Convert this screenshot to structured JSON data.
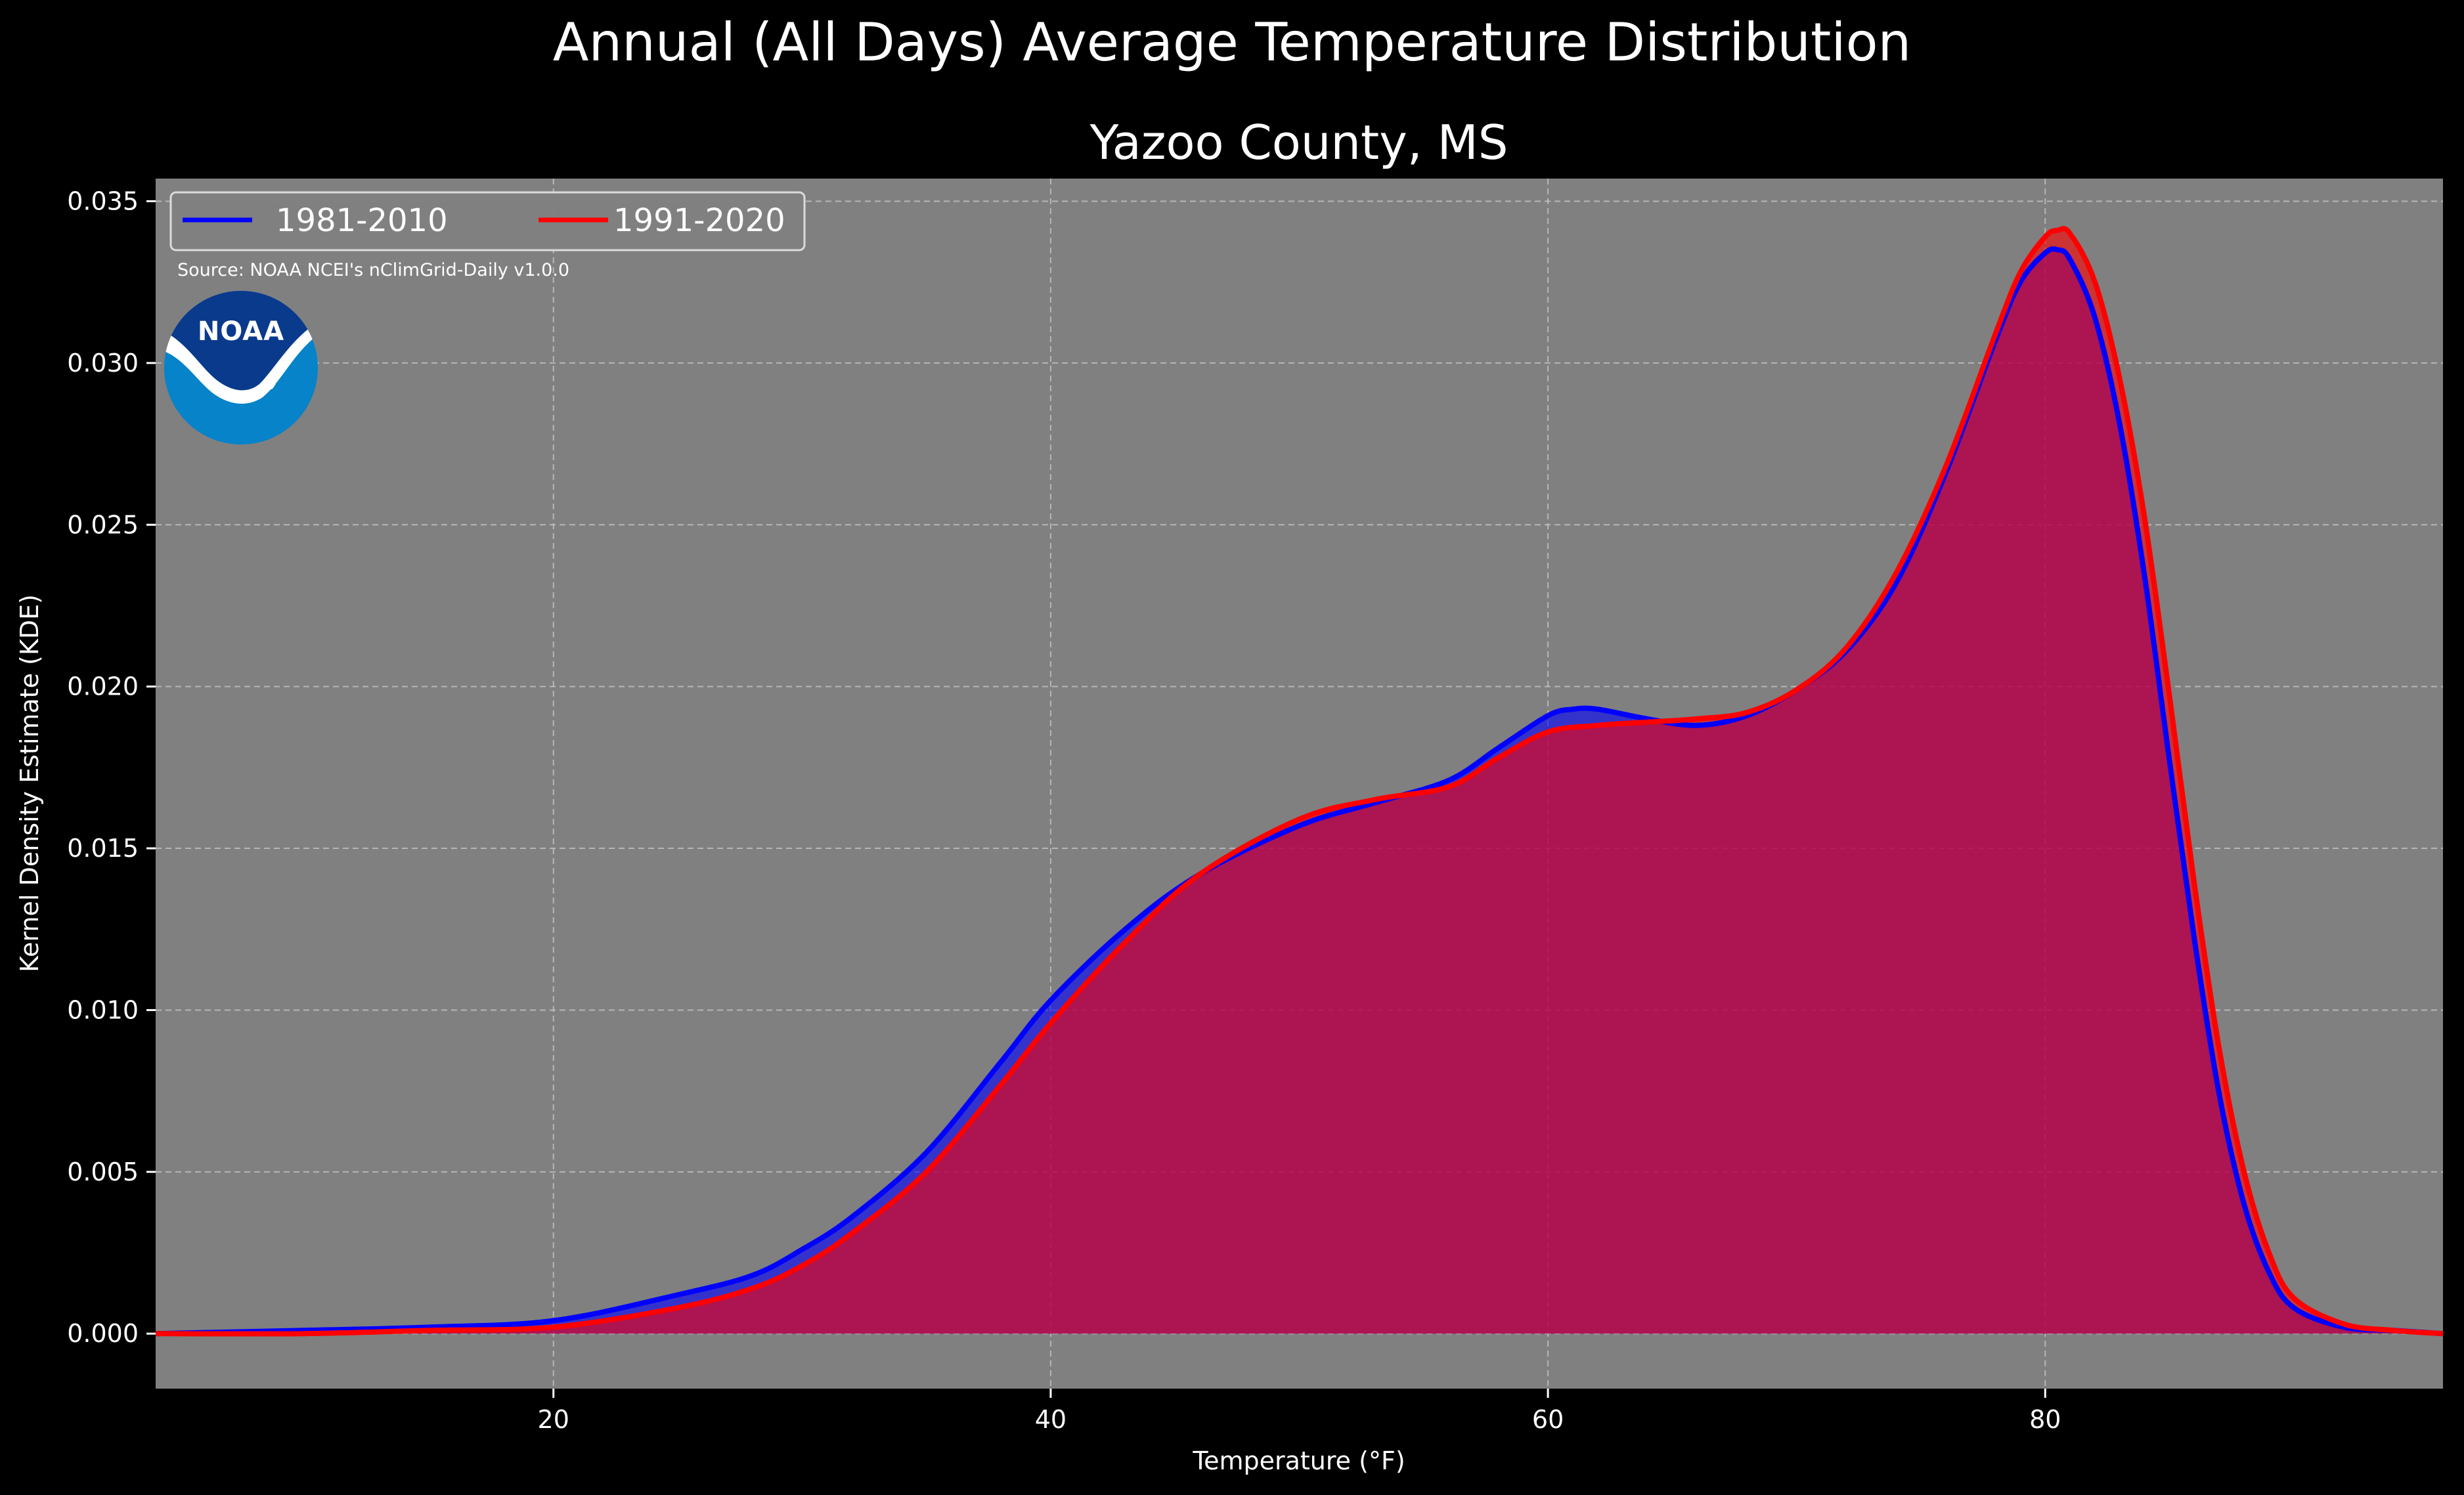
{
  "chart_data": {
    "type": "area",
    "title": "Annual (All Days) Average Temperature Distribution",
    "subtitle": "Yazoo County, MS",
    "xlabel": "Temperature (°F)",
    "ylabel": "Kernel Density Estimate (KDE)",
    "xlim": [
      4,
      96
    ],
    "ylim": [
      -0.0017,
      0.0357
    ],
    "xticks": [
      20,
      40,
      60,
      80
    ],
    "yticks": [
      0.0,
      0.005,
      0.01,
      0.015,
      0.02,
      0.025,
      0.03,
      0.035
    ],
    "ytick_labels": [
      "0.000",
      "0.005",
      "0.010",
      "0.015",
      "0.020",
      "0.025",
      "0.030",
      "0.035"
    ],
    "grid": true,
    "legend_placement": "top-left",
    "source": "Source: NOAA NCEI's nClimGrid-Daily v1.0.0",
    "background_color": "#000000",
    "plot_background": "#808080",
    "series": [
      {
        "name": "1981-2010",
        "color": "#0000ff",
        "x": [
          4,
          10,
          15,
          20,
          25,
          28,
          30,
          32,
          35,
          38,
          40,
          43,
          46,
          50,
          53,
          56,
          58,
          60,
          61,
          62,
          64,
          66,
          68,
          70,
          72,
          74,
          76,
          78,
          79,
          80,
          80.5,
          81,
          82,
          83,
          84,
          85,
          86,
          87,
          88,
          89,
          90,
          92,
          94,
          96
        ],
        "values": [
          0.0,
          0.0001,
          0.0002,
          0.0004,
          0.0012,
          0.0018,
          0.0026,
          0.0036,
          0.0056,
          0.0084,
          0.0103,
          0.0125,
          0.0142,
          0.0157,
          0.0164,
          0.0171,
          0.0181,
          0.0191,
          0.0193,
          0.0193,
          0.019,
          0.0188,
          0.0191,
          0.0199,
          0.0211,
          0.0232,
          0.0266,
          0.0307,
          0.0325,
          0.0334,
          0.0335,
          0.0332,
          0.0314,
          0.0281,
          0.0234,
          0.0177,
          0.0122,
          0.0074,
          0.004,
          0.0019,
          0.0008,
          0.0002,
          0.0001,
          0.0
        ]
      },
      {
        "name": "1991-2020",
        "color": "#ff0000",
        "x": [
          4,
          10,
          15,
          20,
          25,
          28,
          30,
          32,
          35,
          38,
          40,
          43,
          46,
          50,
          53,
          56,
          58,
          60,
          62,
          64,
          66,
          68,
          70,
          72,
          74,
          76,
          78,
          79,
          80,
          80.5,
          81,
          82,
          83,
          84,
          85,
          86,
          87,
          88,
          89,
          90,
          92,
          94,
          96
        ],
        "values": [
          0.0,
          0.0,
          0.0001,
          0.0002,
          0.0008,
          0.0014,
          0.0021,
          0.0031,
          0.005,
          0.0077,
          0.0096,
          0.0121,
          0.0142,
          0.0159,
          0.0165,
          0.0169,
          0.0178,
          0.0186,
          0.0188,
          0.0189,
          0.019,
          0.0192,
          0.0199,
          0.0212,
          0.0235,
          0.0268,
          0.0309,
          0.0328,
          0.0339,
          0.0341,
          0.034,
          0.0325,
          0.0295,
          0.0252,
          0.0197,
          0.0139,
          0.0088,
          0.005,
          0.0025,
          0.0011,
          0.0003,
          0.0001,
          0.0
        ]
      }
    ]
  },
  "logo": {
    "text": "NOAA",
    "top_color": "#0a3a8c",
    "bottom_color": "#0683c9"
  }
}
